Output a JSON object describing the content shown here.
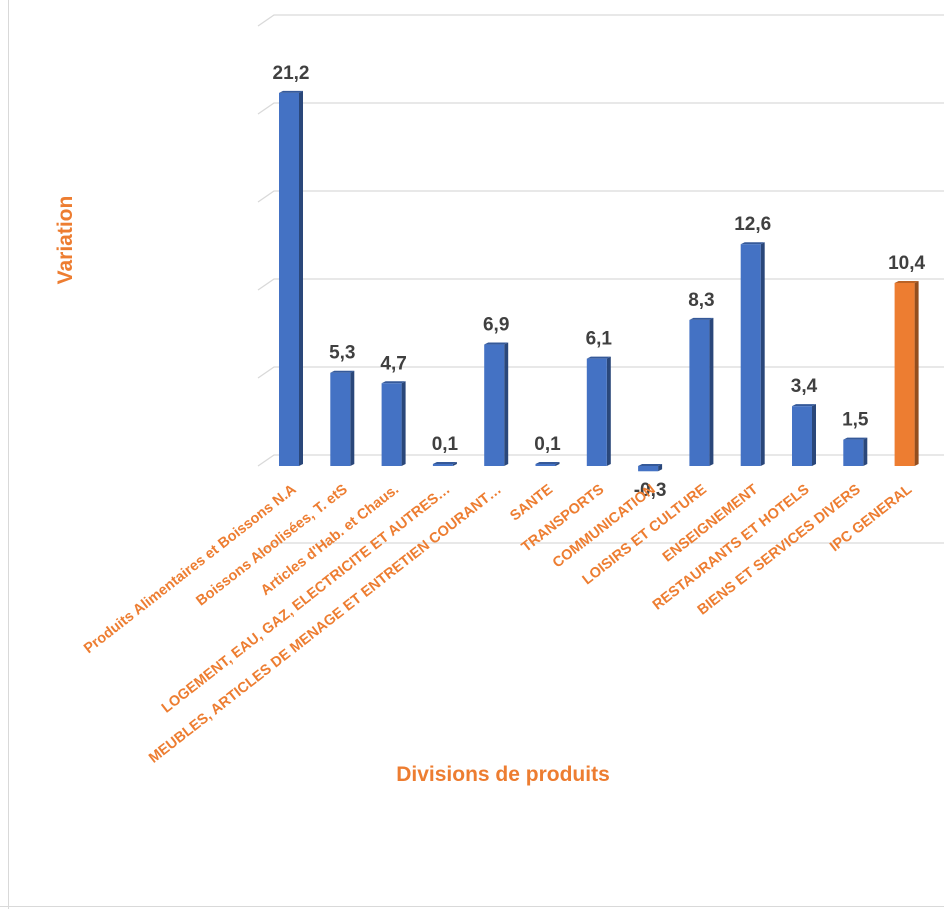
{
  "chart_data": {
    "type": "bar",
    "xlabel": "Divisions de produits",
    "ylabel": "Variation",
    "categories": [
      "Produits Alimentaires et Boissons N.A",
      "Boissons Aloolisées, T. etS",
      "Articles d'Hab. et Chaus.",
      "LOGEMENT, EAU, GAZ, ELECTRICITE ET AUTRES…",
      "MEUBLES, ARTICLES DE MENAGE ET ENTRETIEN COURANT…",
      "SANTE",
      "TRANSPORTS",
      "COMMUNICATION",
      "LOISIRS ET CULTURE",
      "ENSEIGNEMENT",
      "RESTAURANTS ET HOTELS",
      "BIENS ET SERVICES DIVERS",
      "IPC GENERAL"
    ],
    "values": [
      21.2,
      5.3,
      4.7,
      0.1,
      6.9,
      0.1,
      6.1,
      -0.3,
      8.3,
      12.6,
      3.4,
      1.5,
      10.4
    ],
    "value_labels": [
      "21,2",
      "5,3",
      "4,7",
      "0,1",
      "6,9",
      "0,1",
      "6,1",
      "-0,3",
      "8,3",
      "12,6",
      "3,4",
      "1,5",
      "10,4"
    ],
    "ylim": [
      -5,
      25
    ],
    "grid": true,
    "legend": "none",
    "colors": {
      "bar": "#4472c4",
      "highlight_bar": "#ed7d31",
      "axis_text": "#ed7d31",
      "data_label": "#404040",
      "gridline": "#d9d9d9"
    },
    "highlight_index": 12
  }
}
